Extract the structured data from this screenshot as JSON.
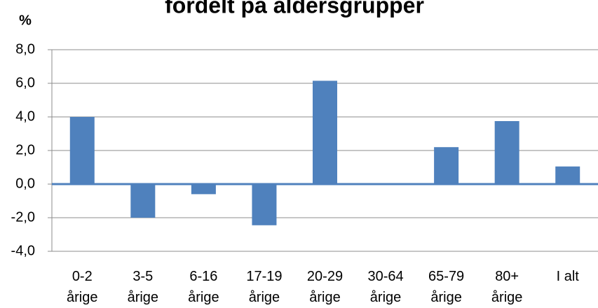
{
  "chart_data": {
    "type": "bar",
    "title": "fordelt på aldersgrupper",
    "y_label": "%",
    "categories": [
      "0-2 årige",
      "3-5 årige",
      "6-16 årige",
      "17-19 årige",
      "20-29 årige",
      "30-64 årige",
      "65-79 årige",
      "80+ årige",
      "I alt"
    ],
    "values": [
      4.0,
      -2.0,
      -0.6,
      -2.45,
      6.15,
      0,
      2.2,
      3.75,
      1.05
    ],
    "color": "#4f81bd",
    "ylim": [
      -4,
      8
    ],
    "yticks": [
      {
        "value": -4,
        "label": "-4,0"
      },
      {
        "value": -2,
        "label": "-2,0"
      },
      {
        "value": 0,
        "label": "0,0"
      },
      {
        "value": 2,
        "label": "2,0"
      },
      {
        "value": 4,
        "label": "4,0"
      },
      {
        "value": 6,
        "label": "6,0"
      },
      {
        "value": 8,
        "label": "8,0"
      }
    ],
    "grid": true
  }
}
